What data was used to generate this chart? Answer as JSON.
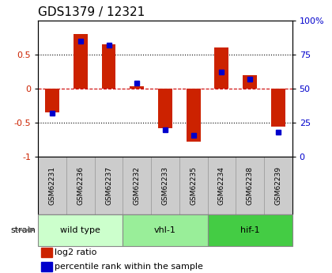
{
  "title": "GDS1379 / 12321",
  "samples": [
    "GSM62231",
    "GSM62236",
    "GSM62237",
    "GSM62232",
    "GSM62233",
    "GSM62235",
    "GSM62234",
    "GSM62238",
    "GSM62239"
  ],
  "log2_ratio": [
    -0.35,
    0.8,
    0.65,
    0.04,
    -0.58,
    -0.77,
    0.6,
    0.2,
    -0.56
  ],
  "percentile": [
    32,
    85,
    82,
    54,
    20,
    16,
    62,
    57,
    18
  ],
  "groups": [
    {
      "label": "wild type",
      "start": 0,
      "end": 3,
      "color": "#ccffcc"
    },
    {
      "label": "vhl-1",
      "start": 3,
      "end": 6,
      "color": "#99ee99"
    },
    {
      "label": "hif-1",
      "start": 6,
      "end": 9,
      "color": "#44cc44"
    }
  ],
  "ylim_left": [
    -1,
    1
  ],
  "ylim_right": [
    0,
    100
  ],
  "yticks_left": [
    -1,
    -0.5,
    0,
    0.5
  ],
  "yticks_right": [
    0,
    25,
    50,
    75,
    100
  ],
  "bar_color": "#cc2200",
  "dot_color": "#0000cc",
  "zero_line_color": "#cc0000",
  "grid_color": "#000000",
  "title_fontsize": 11,
  "label_color_left": "#cc2200",
  "label_color_right": "#0000cc",
  "bg_color": "#ffffff",
  "sample_box_color": "#cccccc",
  "sample_box_edge": "#999999"
}
